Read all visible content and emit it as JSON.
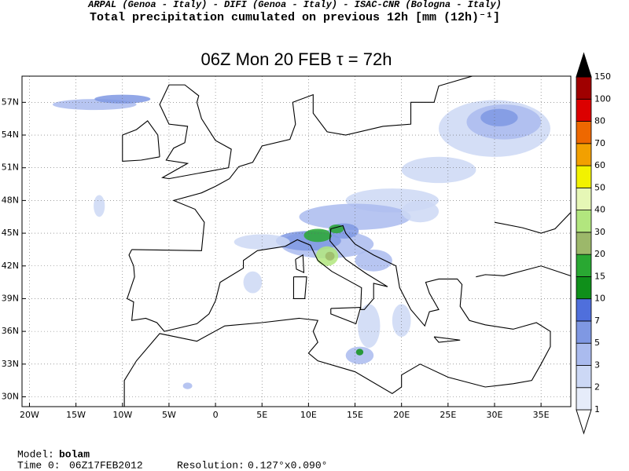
{
  "header": {
    "credits": "ARPAL (Genoa - Italy)  -  DIFI (Genoa - Italy)  -  ISAC-CNR (Bologna - Italy)",
    "title": "Total precipitation cumulated on previous 12h [mm (12h)⁻¹]"
  },
  "map": {
    "title": "06Z Mon 20 FEB  τ = 72h",
    "xlim": [
      -20.8,
      38.2
    ],
    "ylim": [
      29.1,
      59.4
    ],
    "xticks": [
      {
        "value": -20,
        "label": "20W"
      },
      {
        "value": -15,
        "label": "15W"
      },
      {
        "value": -10,
        "label": "10W"
      },
      {
        "value": -5,
        "label": "5W"
      },
      0,
      {
        "value": 5,
        "label": "5E"
      },
      {
        "value": 10,
        "label": "10E"
      },
      {
        "value": 15,
        "label": "15E"
      },
      {
        "value": 20,
        "label": "20E"
      },
      {
        "value": 25,
        "label": "25E"
      },
      {
        "value": 30,
        "label": "30E"
      },
      {
        "value": 35,
        "label": "35E"
      }
    ],
    "yticks": [
      {
        "value": 30,
        "label": "30N"
      },
      {
        "value": 33,
        "label": "33N"
      },
      {
        "value": 36,
        "label": "36N"
      },
      {
        "value": 39,
        "label": "39N"
      },
      {
        "value": 42,
        "label": "42N"
      },
      {
        "value": 45,
        "label": "45N"
      },
      {
        "value": 48,
        "label": "48N"
      },
      {
        "value": 51,
        "label": "51N"
      },
      {
        "value": 54,
        "label": "54N"
      },
      {
        "value": 57,
        "label": "57N"
      }
    ],
    "colorbar": {
      "levels": [
        1,
        2,
        3,
        5,
        7,
        10,
        15,
        20,
        30,
        40,
        50,
        60,
        70,
        80,
        100,
        150
      ],
      "colors": [
        "#ffffff",
        "#e6ecfa",
        "#ccd8f5",
        "#aabbee",
        "#7f98e3",
        "#4f6fdc",
        "#0f8f1a",
        "#29a832",
        "#9cb86a",
        "#b2e67e",
        "#e6f7b6",
        "#f2f200",
        "#f2a000",
        "#ee6800",
        "#dc0000",
        "#a00000",
        "#000000"
      ]
    }
  },
  "footer": {
    "model_label": "Model:",
    "model": "bolam",
    "time_label": "Time 0:",
    "time": "06Z17FEB2012",
    "resolution_label": "Resolution:",
    "resolution": "0.127°x0.090°"
  }
}
